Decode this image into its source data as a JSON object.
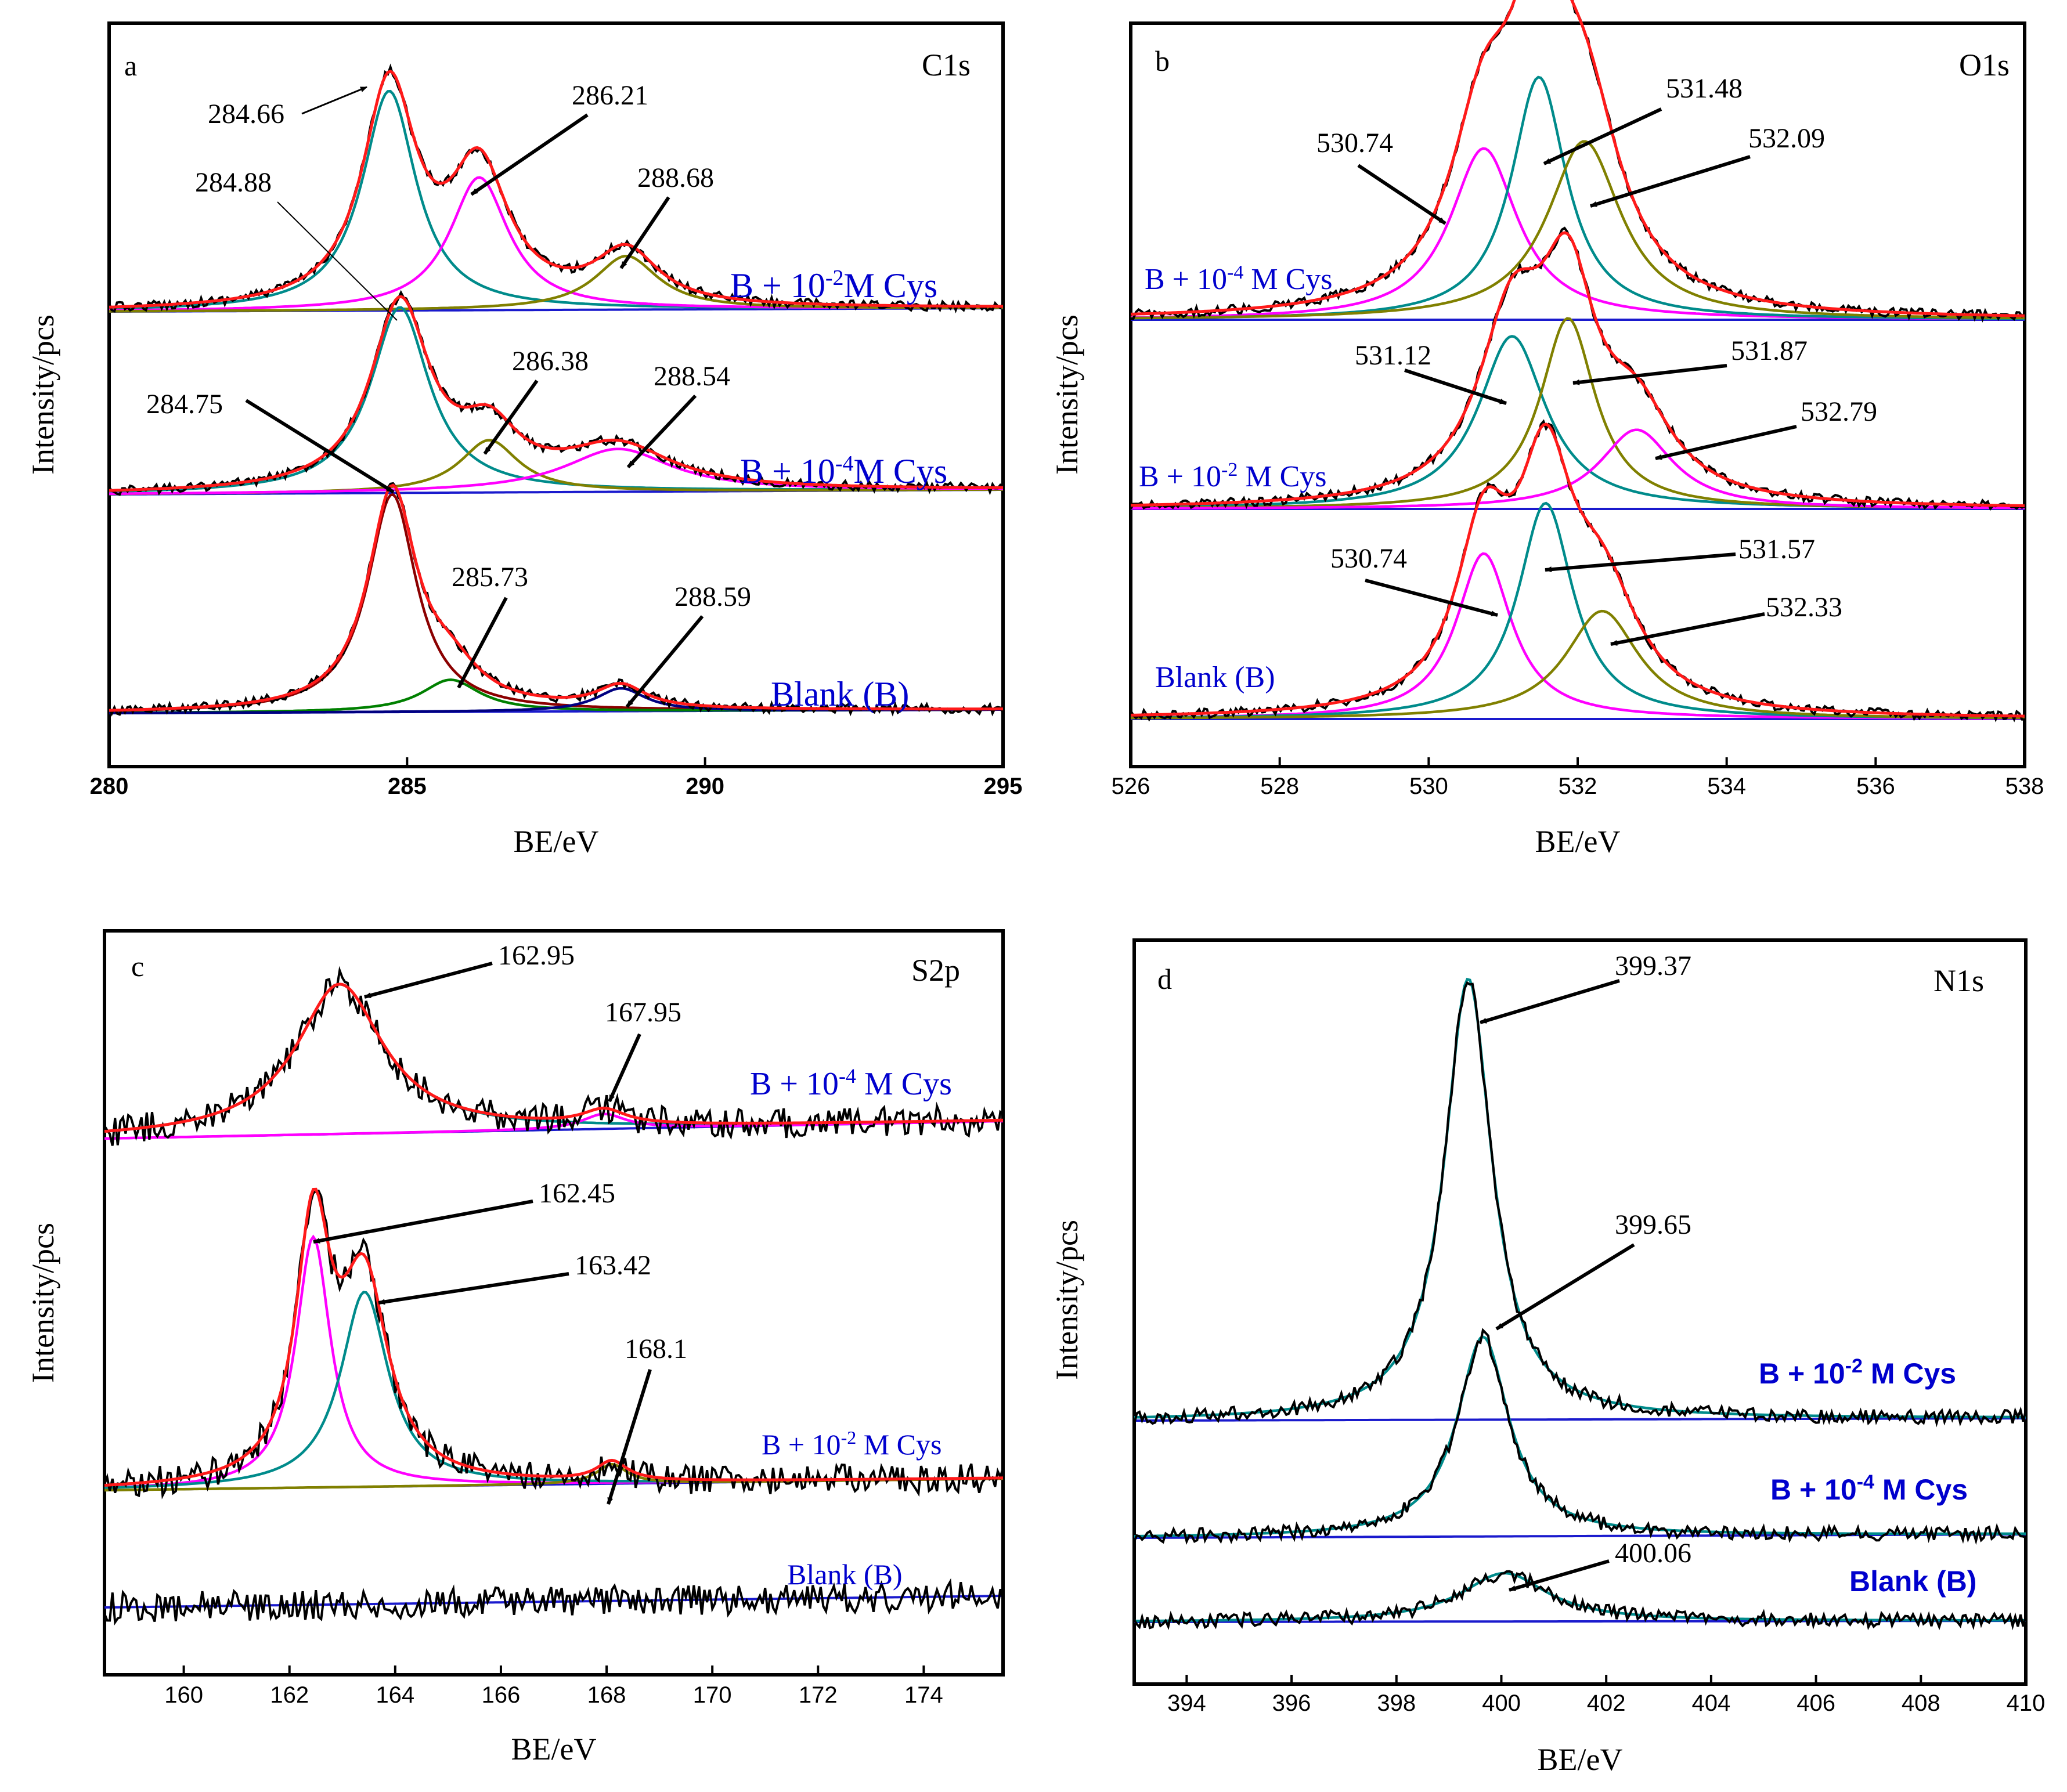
{
  "chart_data": [
    {
      "panel": "a",
      "type": "line",
      "title": "C1s",
      "xlabel": "BE/eV",
      "ylabel": "Intensity/pcs",
      "xlim": [
        280,
        295
      ],
      "xticks": [
        "280",
        "285",
        "290",
        "295"
      ],
      "grid": false,
      "peak_annotations": [
        "284.66",
        "286.21",
        "288.68",
        "284.88",
        "286.38",
        "288.54",
        "284.75",
        "285.73",
        "288.59"
      ],
      "series": [
        {
          "name": "B + 10",
          "exp": "-2",
          "unit": "M  Cys",
          "components": [
            {
              "center": 284.7,
              "height": 0.86,
              "width": 0.55,
              "color": "#008b8b"
            },
            {
              "center": 286.21,
              "height": 0.52,
              "width": 0.6,
              "color": "#ff00ff"
            },
            {
              "center": 288.68,
              "height": 0.21,
              "width": 0.65,
              "color": "#808000"
            }
          ]
        },
        {
          "name": "B + 10",
          "exp": "-4",
          "unit": "M  Cys",
          "components": [
            {
              "center": 284.88,
              "height": 0.78,
              "width": 0.6,
              "color": "#008b8b"
            },
            {
              "center": 286.38,
              "height": 0.22,
              "width": 0.6,
              "color": "#808000"
            },
            {
              "center": 288.54,
              "height": 0.18,
              "width": 1.1,
              "color": "#ff00ff"
            }
          ]
        },
        {
          "name": "Blank (B)",
          "exp": "",
          "unit": "",
          "components": [
            {
              "center": 284.75,
              "height": 0.95,
              "width": 0.5,
              "color": "#8b0000"
            },
            {
              "center": 285.73,
              "height": 0.14,
              "width": 0.6,
              "color": "#008000"
            },
            {
              "center": 288.59,
              "height": 0.1,
              "width": 0.5,
              "color": "#000080"
            }
          ]
        }
      ]
    },
    {
      "panel": "b",
      "type": "line",
      "title": "O1s",
      "xlabel": "BE/eV",
      "ylabel": "Intensity/pcs",
      "xlim": [
        526,
        538
      ],
      "xticks": [
        "526",
        "528",
        "530",
        "532",
        "534",
        "536",
        "538"
      ],
      "grid": false,
      "peak_annotations": [
        "530.74",
        "531.48",
        "532.09",
        "531.12",
        "531.87",
        "532.79",
        "530.74",
        "531.57",
        "532.33"
      ],
      "series": [
        {
          "name": "B + 10",
          "exp": "-4",
          "unit": " M Cys",
          "components": [
            {
              "center": 530.74,
              "height": 0.48,
              "width": 0.55,
              "color": "#ff00ff"
            },
            {
              "center": 531.48,
              "height": 0.68,
              "width": 0.45,
              "color": "#008b8b"
            },
            {
              "center": 532.09,
              "height": 0.5,
              "width": 0.6,
              "color": "#808000"
            }
          ]
        },
        {
          "name": "B + 10",
          "exp": "-2",
          "unit": " M Cys",
          "components": [
            {
              "center": 531.12,
              "height": 0.48,
              "width": 0.55,
              "color": "#008b8b"
            },
            {
              "center": 531.87,
              "height": 0.53,
              "width": 0.45,
              "color": "#808000"
            },
            {
              "center": 532.79,
              "height": 0.22,
              "width": 0.6,
              "color": "#ff00ff"
            }
          ]
        },
        {
          "name": "Blank (B)",
          "exp": "",
          "unit": "",
          "components": [
            {
              "center": 530.74,
              "height": 0.46,
              "width": 0.45,
              "color": "#ff00ff"
            },
            {
              "center": 531.57,
              "height": 0.6,
              "width": 0.45,
              "color": "#008b8b"
            },
            {
              "center": 532.33,
              "height": 0.3,
              "width": 0.6,
              "color": "#808000"
            }
          ]
        }
      ]
    },
    {
      "panel": "c",
      "type": "line",
      "title": "S2p",
      "xlabel": "BE/eV",
      "ylabel": "Intensity/pcs",
      "xlim": [
        158.5,
        175.5
      ],
      "xticks": [
        "160",
        "162",
        "164",
        "166",
        "168",
        "170",
        "172",
        "174"
      ],
      "grid": false,
      "peak_annotations": [
        "162.95",
        "167.95",
        "162.45",
        "163.42",
        "168.1"
      ],
      "series": [
        {
          "name": "B + 10",
          "exp": "-4",
          "unit": " M Cys",
          "components": [
            {
              "center": 162.95,
              "height": 0.6,
              "width": 1.0,
              "color": "#008b8b"
            },
            {
              "center": 167.95,
              "height": 0.06,
              "width": 0.5,
              "color": "#ff00ff"
            }
          ]
        },
        {
          "name": "B + 10",
          "exp": "-2",
          "unit": " M Cys",
          "components": [
            {
              "center": 162.45,
              "height": 0.9,
              "width": 0.4,
              "color": "#ff00ff"
            },
            {
              "center": 163.42,
              "height": 0.7,
              "width": 0.55,
              "color": "#008b8b"
            },
            {
              "center": 168.1,
              "height": 0.07,
              "width": 0.35,
              "color": "#808000"
            }
          ]
        },
        {
          "name": "Blank (B)",
          "exp": "",
          "unit": "",
          "components": []
        }
      ]
    },
    {
      "panel": "d",
      "type": "line",
      "title": "N1s",
      "xlabel": "BE/eV",
      "ylabel": "Intensity/pcs",
      "xlim": [
        393,
        410
      ],
      "xticks": [
        "394",
        "396",
        "398",
        "400",
        "402",
        "404",
        "406",
        "408",
        "410"
      ],
      "grid": false,
      "peak_annotations": [
        "399.37",
        "399.65",
        "400.06"
      ],
      "series": [
        {
          "name": "B + 10",
          "exp": "-2",
          "unit": " M Cys",
          "components": [
            {
              "center": 399.37,
              "height": 1.0,
              "width": 0.55,
              "color": "#008b8b"
            }
          ]
        },
        {
          "name": "B + 10",
          "exp": "-4",
          "unit": " M Cys",
          "components": [
            {
              "center": 399.65,
              "height": 0.62,
              "width": 0.6,
              "color": "#008b8b"
            }
          ]
        },
        {
          "name": "Blank (B)",
          "exp": "",
          "unit": "",
          "components": [
            {
              "center": 400.06,
              "height": 0.15,
              "width": 1.0,
              "color": "#008b8b"
            }
          ]
        }
      ]
    }
  ]
}
